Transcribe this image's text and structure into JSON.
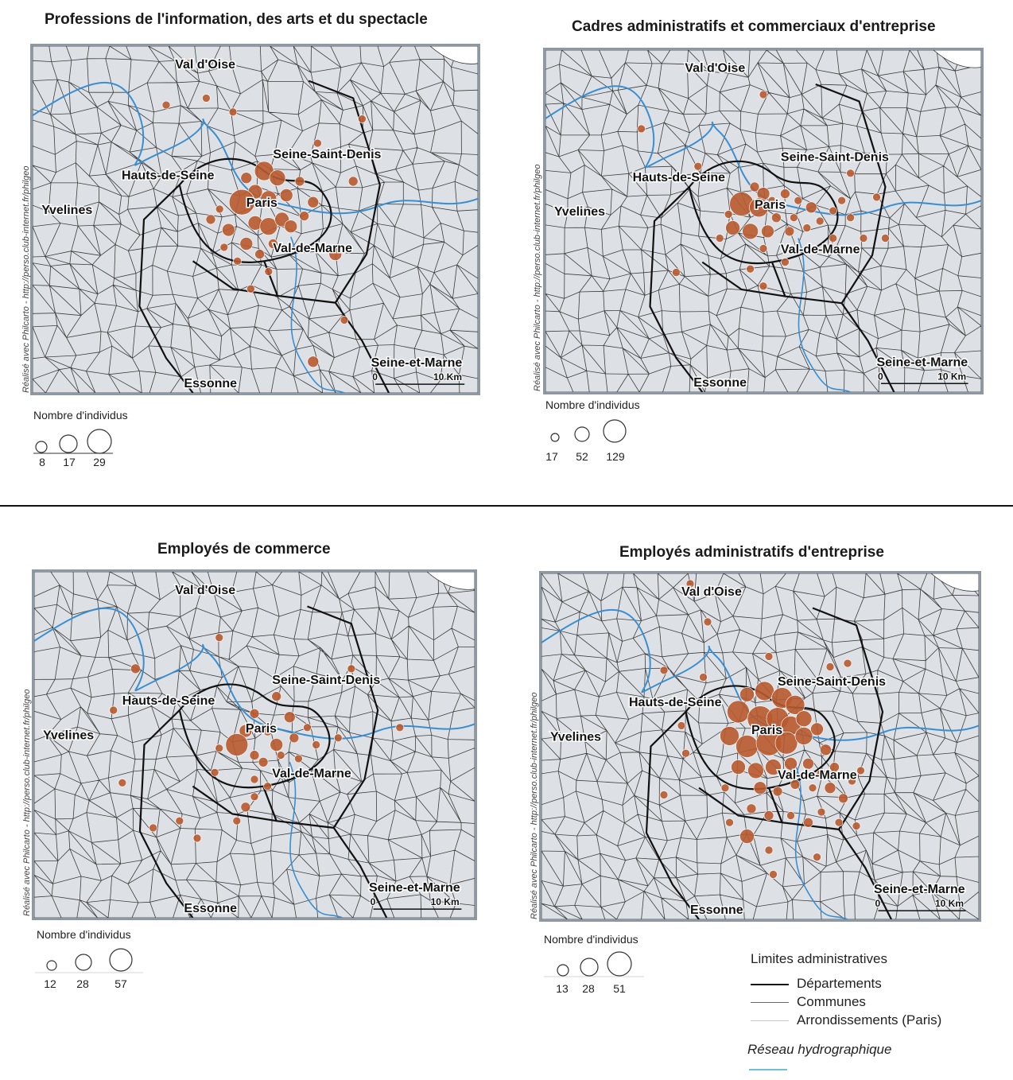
{
  "panels": [
    {
      "title": "Professions de l'information, des arts et du spectacle",
      "legend_title": "Nombre d'individus",
      "legend_values": [
        "8",
        "17",
        "29"
      ],
      "paris_scale": 1.0,
      "dots": [
        [
          0.35,
          0.05,
          5
        ],
        [
          0.39,
          0.15,
          5
        ],
        [
          0.3,
          0.17,
          5
        ],
        [
          0.45,
          0.19,
          5
        ],
        [
          0.74,
          0.21,
          5
        ],
        [
          0.64,
          0.28,
          5
        ],
        [
          0.72,
          0.39,
          6
        ],
        [
          0.48,
          0.38,
          7
        ],
        [
          0.52,
          0.36,
          12
        ],
        [
          0.55,
          0.38,
          10
        ],
        [
          0.5,
          0.42,
          9
        ],
        [
          0.47,
          0.45,
          16
        ],
        [
          0.53,
          0.44,
          10
        ],
        [
          0.57,
          0.43,
          8
        ],
        [
          0.6,
          0.39,
          6
        ],
        [
          0.63,
          0.45,
          7
        ],
        [
          0.42,
          0.47,
          5
        ],
        [
          0.44,
          0.53,
          8
        ],
        [
          0.5,
          0.51,
          9
        ],
        [
          0.53,
          0.52,
          11
        ],
        [
          0.56,
          0.5,
          9
        ],
        [
          0.58,
          0.52,
          8
        ],
        [
          0.61,
          0.49,
          6
        ],
        [
          0.4,
          0.5,
          6
        ],
        [
          0.48,
          0.57,
          8
        ],
        [
          0.51,
          0.6,
          6
        ],
        [
          0.54,
          0.57,
          6
        ],
        [
          0.43,
          0.58,
          5
        ],
        [
          0.46,
          0.62,
          5
        ],
        [
          0.53,
          0.65,
          5
        ],
        [
          0.68,
          0.6,
          8
        ],
        [
          0.49,
          0.7,
          5
        ],
        [
          0.7,
          0.79,
          5
        ],
        [
          0.63,
          0.91,
          7
        ]
      ],
      "labels": {
        "val_doise": "Val d'Oise",
        "ssd": "Seine-Saint-Denis",
        "hds": "Hauts-de-Seine",
        "paris": "Paris",
        "yvelines": "Yvelines",
        "vdm": "Val-de-Marne",
        "sem": "Seine-et-Marne",
        "essonne": "Essonne",
        "scale_zero": "0",
        "scale_km": "10 Km"
      }
    },
    {
      "title": "Cadres administratifs et commerciaux d'entreprise",
      "legend_title": "Nombre d'individus",
      "legend_values": [
        "17",
        "52",
        "129"
      ],
      "paris_scale": 0.9,
      "dots": [
        [
          0.48,
          0.4,
          6
        ],
        [
          0.5,
          0.42,
          8
        ],
        [
          0.52,
          0.44,
          5
        ],
        [
          0.45,
          0.45,
          15
        ],
        [
          0.49,
          0.46,
          12
        ],
        [
          0.55,
          0.42,
          6
        ],
        [
          0.58,
          0.44,
          5
        ],
        [
          0.61,
          0.46,
          7
        ],
        [
          0.57,
          0.49,
          5
        ],
        [
          0.53,
          0.49,
          6
        ],
        [
          0.43,
          0.52,
          9
        ],
        [
          0.47,
          0.53,
          10
        ],
        [
          0.51,
          0.53,
          8
        ],
        [
          0.56,
          0.53,
          6
        ],
        [
          0.6,
          0.52,
          5
        ],
        [
          0.63,
          0.5,
          5
        ],
        [
          0.66,
          0.47,
          5
        ],
        [
          0.68,
          0.44,
          5
        ],
        [
          0.7,
          0.49,
          5
        ],
        [
          0.66,
          0.55,
          5
        ],
        [
          0.73,
          0.55,
          5
        ],
        [
          0.42,
          0.48,
          5
        ],
        [
          0.4,
          0.55,
          5
        ],
        [
          0.5,
          0.58,
          5
        ],
        [
          0.55,
          0.62,
          5
        ],
        [
          0.47,
          0.64,
          5
        ],
        [
          0.5,
          0.69,
          5
        ],
        [
          0.7,
          0.36,
          5
        ],
        [
          0.76,
          0.43,
          5
        ],
        [
          0.78,
          0.55,
          5
        ],
        [
          0.22,
          0.23,
          5
        ],
        [
          0.35,
          0.34,
          5
        ],
        [
          0.5,
          0.13,
          5
        ],
        [
          0.3,
          0.65,
          5
        ]
      ],
      "labels": {
        "val_doise": "Val d'Oise",
        "ssd": "Seine-Saint-Denis",
        "hds": "Hauts-de-Seine",
        "paris": "Paris",
        "yvelines": "Yvelines",
        "vdm": "Val-de-Marne",
        "sem": "Seine-et-Marne",
        "essonne": "Essonne",
        "scale_zero": "0",
        "scale_km": "10 Km"
      }
    },
    {
      "title": "Employés de commerce",
      "legend_title": "Nombre d'individus",
      "legend_values": [
        "12",
        "28",
        "57"
      ],
      "paris_scale": 0.85,
      "dots": [
        [
          0.42,
          0.19,
          5
        ],
        [
          0.23,
          0.28,
          6
        ],
        [
          0.18,
          0.4,
          5
        ],
        [
          0.72,
          0.28,
          5
        ],
        [
          0.55,
          0.36,
          6
        ],
        [
          0.5,
          0.41,
          6
        ],
        [
          0.58,
          0.42,
          7
        ],
        [
          0.48,
          0.46,
          8
        ],
        [
          0.53,
          0.46,
          6
        ],
        [
          0.46,
          0.5,
          14
        ],
        [
          0.55,
          0.5,
          8
        ],
        [
          0.59,
          0.48,
          6
        ],
        [
          0.62,
          0.45,
          5
        ],
        [
          0.42,
          0.51,
          5
        ],
        [
          0.5,
          0.53,
          6
        ],
        [
          0.52,
          0.55,
          6
        ],
        [
          0.56,
          0.53,
          5
        ],
        [
          0.6,
          0.54,
          5
        ],
        [
          0.64,
          0.5,
          5
        ],
        [
          0.53,
          0.62,
          5
        ],
        [
          0.5,
          0.65,
          5
        ],
        [
          0.48,
          0.68,
          6
        ],
        [
          0.46,
          0.72,
          5
        ],
        [
          0.41,
          0.58,
          5
        ],
        [
          0.69,
          0.48,
          5
        ],
        [
          0.2,
          0.61,
          5
        ],
        [
          0.27,
          0.74,
          5
        ],
        [
          0.33,
          0.72,
          5
        ],
        [
          0.37,
          0.77,
          5
        ],
        [
          0.83,
          0.45,
          5
        ],
        [
          0.5,
          0.6,
          5
        ]
      ],
      "labels": {
        "val_doise": "Val d'Oise",
        "ssd": "Seine-Saint-Denis",
        "hds": "Hauts-de-Seine",
        "paris": "Paris",
        "yvelines": "Yvelines",
        "vdm": "Val-de-Marne",
        "sem": "Seine-et-Marne",
        "essonne": "Essonne",
        "scale_zero": "0",
        "scale_km": "10 Km"
      }
    },
    {
      "title": "Employés administratifs d'entreprise",
      "legend_title": "Nombre d'individus",
      "legend_values": [
        "13",
        "28",
        "51"
      ],
      "paris_scale": 1.0,
      "dots": [
        [
          0.34,
          0.03,
          5
        ],
        [
          0.38,
          0.14,
          5
        ],
        [
          0.28,
          0.28,
          5
        ],
        [
          0.37,
          0.3,
          5
        ],
        [
          0.52,
          0.24,
          5
        ],
        [
          0.66,
          0.27,
          5
        ],
        [
          0.7,
          0.26,
          5
        ],
        [
          0.47,
          0.35,
          9
        ],
        [
          0.51,
          0.34,
          12
        ],
        [
          0.55,
          0.36,
          13
        ],
        [
          0.58,
          0.38,
          12
        ],
        [
          0.45,
          0.4,
          14
        ],
        [
          0.5,
          0.42,
          16
        ],
        [
          0.54,
          0.42,
          14
        ],
        [
          0.57,
          0.44,
          12
        ],
        [
          0.6,
          0.42,
          10
        ],
        [
          0.43,
          0.47,
          12
        ],
        [
          0.47,
          0.5,
          14
        ],
        [
          0.52,
          0.49,
          16
        ],
        [
          0.56,
          0.49,
          14
        ],
        [
          0.6,
          0.47,
          11
        ],
        [
          0.63,
          0.45,
          8
        ],
        [
          0.65,
          0.51,
          7
        ],
        [
          0.45,
          0.56,
          9
        ],
        [
          0.49,
          0.57,
          10
        ],
        [
          0.53,
          0.56,
          10
        ],
        [
          0.57,
          0.55,
          8
        ],
        [
          0.61,
          0.55,
          7
        ],
        [
          0.64,
          0.58,
          6
        ],
        [
          0.67,
          0.56,
          6
        ],
        [
          0.5,
          0.62,
          8
        ],
        [
          0.54,
          0.63,
          6
        ],
        [
          0.58,
          0.61,
          6
        ],
        [
          0.62,
          0.62,
          5
        ],
        [
          0.66,
          0.62,
          7
        ],
        [
          0.48,
          0.68,
          6
        ],
        [
          0.52,
          0.7,
          6
        ],
        [
          0.57,
          0.7,
          5
        ],
        [
          0.61,
          0.72,
          6
        ],
        [
          0.64,
          0.69,
          5
        ],
        [
          0.69,
          0.65,
          6
        ],
        [
          0.71,
          0.6,
          5
        ],
        [
          0.73,
          0.57,
          5
        ],
        [
          0.47,
          0.76,
          9
        ],
        [
          0.52,
          0.8,
          5
        ],
        [
          0.42,
          0.62,
          5
        ],
        [
          0.32,
          0.44,
          5
        ],
        [
          0.33,
          0.52,
          5
        ],
        [
          0.43,
          0.72,
          5
        ],
        [
          0.28,
          0.64,
          5
        ],
        [
          0.53,
          0.87,
          5
        ],
        [
          0.63,
          0.82,
          5
        ],
        [
          0.68,
          0.72,
          5
        ],
        [
          0.72,
          0.73,
          5
        ]
      ],
      "labels": {
        "val_doise": "Val d'Oise",
        "ssd": "Seine-Saint-Denis",
        "hds": "Hauts-de-Seine",
        "paris": "Paris",
        "yvelines": "Yvelines",
        "vdm": "Val-de-Marne",
        "sem": "Seine-et-Marne",
        "essonne": "Essonne",
        "scale_zero": "0",
        "scale_km": "10 Km"
      }
    }
  ],
  "credit": "Réalisé avec Philcarto - http://perso.club-internet.fr/philgeo",
  "legend": {
    "title": "Limites administratives",
    "departements": "Départements",
    "communes": "Communes",
    "arrondissements": "Arrondissements (Paris)",
    "hydro": "Réseau hydrographique"
  },
  "colors": {
    "dot_fill": "#b85a2e",
    "map_bg": "#dde1e6",
    "water": "#3a8ed0",
    "border": "#8e98a2"
  }
}
